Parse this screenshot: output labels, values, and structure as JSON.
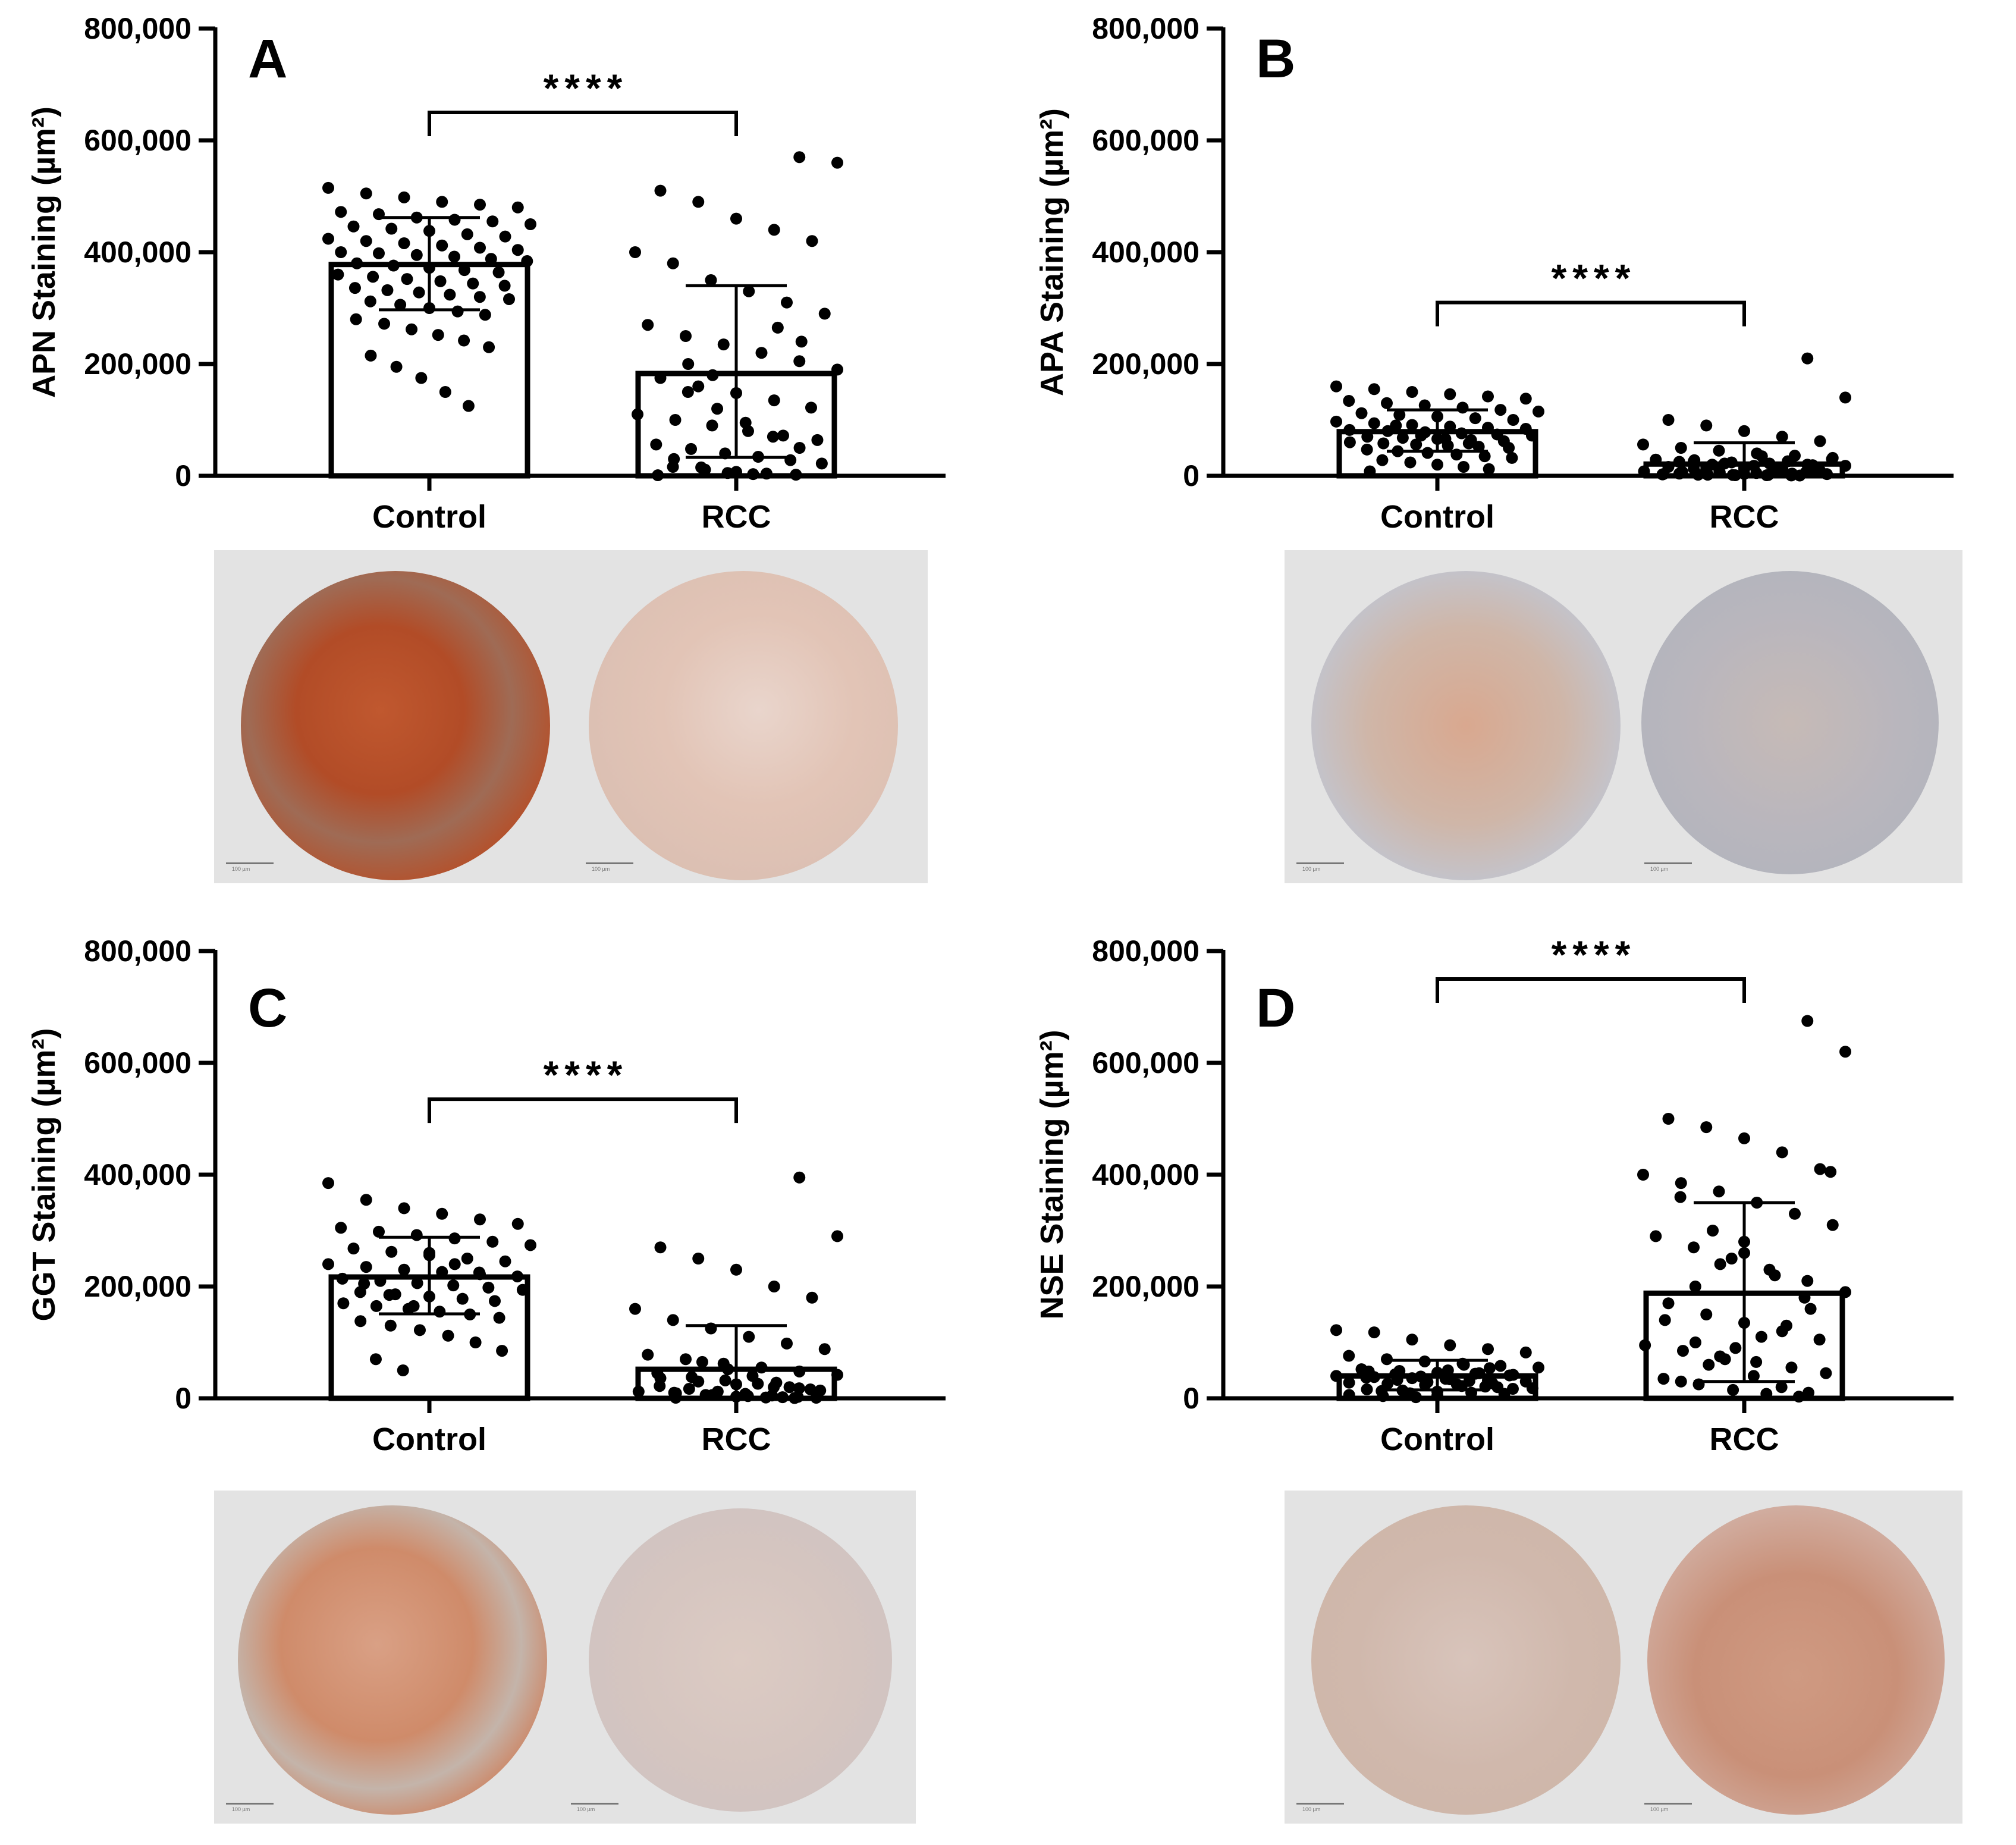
{
  "chart_data": [
    {
      "type": "bar",
      "panel": "A",
      "title": "",
      "ylabel": "APN Staining (µm²)",
      "ylim": [
        0,
        800000
      ],
      "yticks": [
        0,
        200000,
        400000,
        600000,
        800000
      ],
      "ytick_labels": [
        "0",
        "200,000",
        "400,000",
        "600,000",
        "800,000"
      ],
      "categories": [
        "Control",
        "RCC"
      ],
      "values": [
        378000,
        183000
      ],
      "error_sd": [
        [
          297000,
          462000
        ],
        [
          33000,
          340000
        ]
      ],
      "significance": "****",
      "significance_level": 650000,
      "points": [
        [
          515000,
          505000,
          498000,
          490000,
          485000,
          480000,
          472000,
          468000,
          462000,
          458000,
          455000,
          450000,
          446000,
          442000,
          438000,
          432000,
          428000,
          424000,
          420000,
          416000,
          412000,
          408000,
          404000,
          400000,
          398000,
          395000,
          392000,
          388000,
          384000,
          380000,
          376000,
          372000,
          368000,
          364000,
          360000,
          356000,
          352000,
          348000,
          344000,
          340000,
          336000,
          332000,
          328000,
          324000,
          320000,
          316000,
          312000,
          306000,
          300000,
          294000,
          288000,
          280000,
          272000,
          262000,
          252000,
          242000,
          230000,
          215000,
          195000,
          175000,
          150000,
          125000
        ],
        [
          570000,
          560000,
          510000,
          490000,
          460000,
          440000,
          420000,
          400000,
          380000,
          350000,
          330000,
          310000,
          290000,
          270000,
          250000,
          235000,
          220000,
          205000,
          190000,
          175000,
          160000,
          148000,
          135000,
          122000,
          110000,
          100000,
          90000,
          80000,
          72000,
          64000,
          56000,
          48000,
          40000,
          34000,
          28000,
          22000,
          16000,
          11000,
          7000,
          4000,
          2000,
          1000,
          150000,
          120000,
          95000,
          70000,
          50000,
          30000,
          15000,
          5000,
          3000,
          265000,
          240000,
          200000,
          180000
        ]
      ],
      "image_captions": [
        "100 µm",
        "100 µm"
      ]
    },
    {
      "type": "bar",
      "panel": "B",
      "title": "",
      "ylabel": "APA Staining (µm²)",
      "ylim": [
        0,
        800000
      ],
      "yticks": [
        0,
        200000,
        400000,
        600000,
        800000
      ],
      "ytick_labels": [
        "0",
        "200,000",
        "400,000",
        "600,000",
        "800,000"
      ],
      "categories": [
        "Control",
        "RCC"
      ],
      "values": [
        79000,
        21000
      ],
      "error_sd": [
        [
          44000,
          118000
        ],
        [
          0,
          59000
        ]
      ],
      "significance": "****",
      "significance_level": 310000,
      "points": [
        [
          160000,
          155000,
          150000,
          146000,
          142000,
          138000,
          134000,
          130000,
          126000,
          122000,
          118000,
          115000,
          112000,
          109000,
          106000,
          103000,
          100000,
          97000,
          94000,
          91000,
          88000,
          86000,
          84000,
          82000,
          80000,
          78000,
          76000,
          74000,
          72000,
          70000,
          68000,
          66000,
          64000,
          62000,
          60000,
          58000,
          56000,
          54000,
          52000,
          50000,
          47000,
          44000,
          41000,
          38000,
          35000,
          32000,
          28000,
          24000,
          20000,
          16000,
          12000,
          8000,
          90000,
          72000,
          66000,
          58000
        ],
        [
          210000,
          140000,
          100000,
          90000,
          80000,
          70000,
          62000,
          56000,
          50000,
          45000,
          40000,
          36000,
          32000,
          29000,
          26000,
          24000,
          22000,
          20000,
          18000,
          16000,
          14000,
          12000,
          10000,
          9000,
          8000,
          7000,
          6000,
          5000,
          4000,
          3000,
          2500,
          2000,
          1500,
          1000,
          500,
          30000,
          25000,
          20000,
          15000,
          10000,
          6000,
          3000,
          28000,
          22000,
          18000,
          12000,
          8000,
          4000,
          2000,
          1000,
          35000,
          26000,
          19000,
          13000,
          7000,
          3500,
          1500,
          600
        ]
      ],
      "image_captions": [
        "100 µm",
        "100 µm"
      ]
    },
    {
      "type": "bar",
      "panel": "C",
      "title": "",
      "ylabel": "GGT Staining (µm²)",
      "ylim": [
        0,
        800000
      ],
      "yticks": [
        0,
        200000,
        400000,
        600000,
        800000
      ],
      "ytick_labels": [
        "0",
        "200,000",
        "400,000",
        "600,000",
        "800,000"
      ],
      "categories": [
        "Control",
        "RCC"
      ],
      "values": [
        217000,
        52000
      ],
      "error_sd": [
        [
          151000,
          288000
        ],
        [
          0,
          130000
        ]
      ],
      "significance": "****",
      "significance_level": 535000,
      "points": [
        [
          385000,
          355000,
          340000,
          330000,
          320000,
          312000,
          305000,
          298000,
          292000,
          286000,
          280000,
          274000,
          268000,
          262000,
          256000,
          250000,
          245000,
          240000,
          235000,
          230000,
          226000,
          222000,
          218000,
          214000,
          210000,
          206000,
          202000,
          198000,
          194000,
          190000,
          186000,
          182000,
          178000,
          174000,
          170000,
          165000,
          160000,
          155000,
          150000,
          144000,
          138000,
          130000,
          122000,
          112000,
          100000,
          85000,
          70000,
          50000,
          260000,
          240000,
          225000,
          205000,
          185000,
          165000
        ],
        [
          395000,
          290000,
          270000,
          250000,
          230000,
          200000,
          180000,
          160000,
          140000,
          125000,
          110000,
          98000,
          88000,
          78000,
          70000,
          62000,
          55000,
          48000,
          42000,
          36000,
          30000,
          25000,
          20000,
          16000,
          12000,
          9000,
          6000,
          4000,
          2000,
          1000,
          45000,
          38000,
          32000,
          26000,
          20000,
          14000,
          10000,
          6000,
          3000,
          1500,
          500,
          22000,
          17000,
          12000,
          8000,
          5000,
          2500,
          1000,
          65000,
          52000,
          40000,
          28000,
          18000
        ]
      ],
      "image_captions": [
        "100 µm",
        "100 µm"
      ]
    },
    {
      "type": "bar",
      "panel": "D",
      "title": "",
      "ylabel": "NSE Staining (µm²)",
      "ylim": [
        0,
        800000
      ],
      "yticks": [
        0,
        200000,
        400000,
        600000,
        800000
      ],
      "ytick_labels": [
        "0",
        "200,000",
        "400,000",
        "600,000",
        "800,000"
      ],
      "categories": [
        "Control",
        "RCC"
      ],
      "values": [
        40000,
        188000
      ],
      "error_sd": [
        [
          15000,
          68000
        ],
        [
          30000,
          350000
        ]
      ],
      "significance": "****",
      "significance_level": 750000,
      "points": [
        [
          122000,
          118000,
          105000,
          95000,
          88000,
          82000,
          76000,
          70000,
          66000,
          62000,
          58000,
          55000,
          52000,
          49000,
          46000,
          44000,
          42000,
          40000,
          38000,
          36000,
          34000,
          32000,
          30000,
          28000,
          26000,
          24000,
          22000,
          20000,
          18000,
          16000,
          14000,
          12000,
          10000,
          8000,
          6000,
          4000,
          2000,
          50000,
          45000,
          41000,
          37000,
          33000,
          29000,
          25000,
          21000,
          17000,
          13000,
          9000,
          5000,
          60000,
          54000,
          48000,
          43000,
          39000,
          35000,
          31000,
          27000
        ],
        [
          675000,
          620000,
          500000,
          485000,
          465000,
          440000,
          410000,
          400000,
          385000,
          370000,
          350000,
          330000,
          310000,
          290000,
          270000,
          250000,
          230000,
          210000,
          190000,
          170000,
          150000,
          135000,
          120000,
          105000,
          95000,
          85000,
          75000,
          65000,
          55000,
          45000,
          35000,
          25000,
          15000,
          8000,
          3000,
          405000,
          360000,
          300000,
          260000,
          220000,
          180000,
          140000,
          100000,
          70000,
          40000,
          20000,
          10000,
          30000,
          60000,
          90000,
          110000,
          130000,
          160000,
          200000,
          240000,
          280000
        ]
      ],
      "image_captions": [
        "100 µm",
        "100 µm"
      ]
    }
  ]
}
